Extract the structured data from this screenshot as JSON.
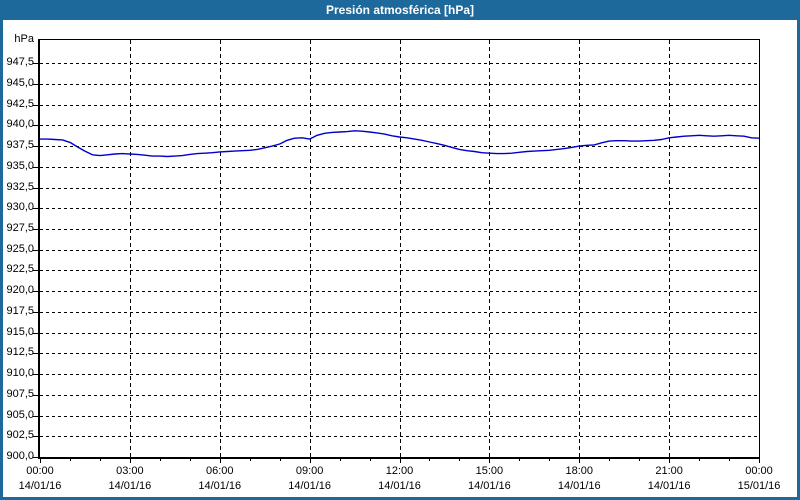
{
  "window": {
    "title": "Presión atmosférica [hPa]",
    "title_bar_color": "#1e699c",
    "title_text_color": "#ffffff"
  },
  "chart_data": {
    "type": "line",
    "title": "Presión atmosférica [hPa]",
    "xlabel": "",
    "ylabel": "hPa",
    "grid": "dashed-black-on",
    "legend_position": "none",
    "plot_background": "#ffffff",
    "series_color": "#0000cc",
    "y_axis": {
      "min": 900.0,
      "max": 950.3,
      "tick_step": 2.5,
      "ticks": [
        {
          "value": 947.5,
          "label": "947,5"
        },
        {
          "value": 945.0,
          "label": "945,0"
        },
        {
          "value": 942.5,
          "label": "942,5"
        },
        {
          "value": 940.0,
          "label": "940,0"
        },
        {
          "value": 937.5,
          "label": "937,5"
        },
        {
          "value": 935.0,
          "label": "935,0"
        },
        {
          "value": 932.5,
          "label": "932,5"
        },
        {
          "value": 930.0,
          "label": "930,0"
        },
        {
          "value": 927.5,
          "label": "927,5"
        },
        {
          "value": 925.0,
          "label": "925,0"
        },
        {
          "value": 922.5,
          "label": "922,5"
        },
        {
          "value": 920.0,
          "label": "920,0"
        },
        {
          "value": 917.5,
          "label": "917,5"
        },
        {
          "value": 915.0,
          "label": "915,0"
        },
        {
          "value": 912.5,
          "label": "912,5"
        },
        {
          "value": 910.0,
          "label": "910,0"
        },
        {
          "value": 907.5,
          "label": "907,5"
        },
        {
          "value": 905.0,
          "label": "905,0"
        },
        {
          "value": 902.5,
          "label": "902,5"
        },
        {
          "value": 900.0,
          "label": "900,0"
        }
      ]
    },
    "x_axis": {
      "start_hour": 0,
      "end_hour": 24,
      "minor_tick_every_hours": 1,
      "major_tick_every_hours": 3,
      "major_ticks": [
        {
          "hour": 0,
          "time": "00:00",
          "date": "14/01/16"
        },
        {
          "hour": 3,
          "time": "03:00",
          "date": "14/01/16"
        },
        {
          "hour": 6,
          "time": "06:00",
          "date": "14/01/16"
        },
        {
          "hour": 9,
          "time": "09:00",
          "date": "14/01/16"
        },
        {
          "hour": 12,
          "time": "12:00",
          "date": "14/01/16"
        },
        {
          "hour": 15,
          "time": "15:00",
          "date": "14/01/16"
        },
        {
          "hour": 18,
          "time": "18:00",
          "date": "14/01/16"
        },
        {
          "hour": 21,
          "time": "21:00",
          "date": "14/01/16"
        },
        {
          "hour": 24,
          "time": "00:00",
          "date": "15/01/16"
        }
      ]
    },
    "series": [
      {
        "name": "Presión atmosférica",
        "unit": "hPa",
        "start_hour": 0,
        "interval_minutes": 15,
        "values": [
          938.35,
          938.35,
          938.3,
          938.25,
          937.95,
          937.4,
          936.9,
          936.45,
          936.35,
          936.45,
          936.55,
          936.6,
          936.55,
          936.5,
          936.4,
          936.3,
          936.3,
          936.25,
          936.3,
          936.35,
          936.5,
          936.6,
          936.65,
          936.7,
          936.8,
          936.85,
          936.9,
          936.95,
          937.0,
          937.1,
          937.3,
          937.5,
          937.75,
          938.2,
          938.45,
          938.5,
          938.35,
          938.8,
          939.05,
          939.15,
          939.2,
          939.25,
          939.35,
          939.3,
          939.2,
          939.1,
          938.95,
          938.75,
          938.6,
          938.5,
          938.35,
          938.2,
          938.0,
          937.8,
          937.6,
          937.35,
          937.1,
          936.95,
          936.85,
          936.7,
          936.65,
          936.6,
          936.6,
          936.65,
          936.75,
          936.85,
          936.9,
          936.95,
          937.0,
          937.1,
          937.2,
          937.35,
          937.5,
          937.6,
          937.65,
          937.9,
          938.1,
          938.15,
          938.15,
          938.1,
          938.1,
          938.15,
          938.2,
          938.3,
          938.5,
          938.6,
          938.7,
          938.75,
          938.8,
          938.75,
          938.7,
          938.75,
          938.8,
          938.75,
          938.7,
          938.5,
          938.45
        ]
      }
    ]
  }
}
